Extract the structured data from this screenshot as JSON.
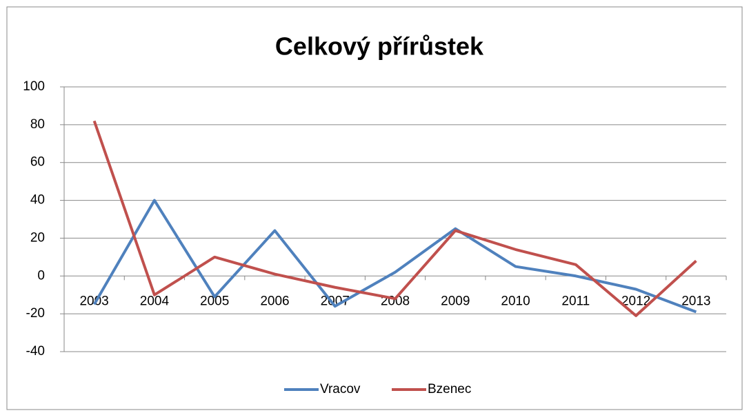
{
  "chart_data": {
    "type": "line",
    "title": "Celkový přírůstek",
    "categories": [
      "2003",
      "2004",
      "2005",
      "2006",
      "2007",
      "2008",
      "2009",
      "2010",
      "2011",
      "2012",
      "2013"
    ],
    "series": [
      {
        "name": "Vracov",
        "color": "#4f81bd",
        "values": [
          -15,
          40,
          -11,
          24,
          -16,
          2,
          25,
          5,
          0,
          -7,
          -19
        ]
      },
      {
        "name": "Bzenec",
        "color": "#c0504d",
        "values": [
          82,
          -10,
          10,
          1,
          -6,
          -12,
          24,
          14,
          6,
          -21,
          8
        ]
      }
    ],
    "ylim": [
      -40,
      100
    ],
    "yticks": [
      -40,
      -20,
      0,
      20,
      40,
      60,
      80,
      100
    ],
    "grid": true,
    "legend": "bottom"
  }
}
